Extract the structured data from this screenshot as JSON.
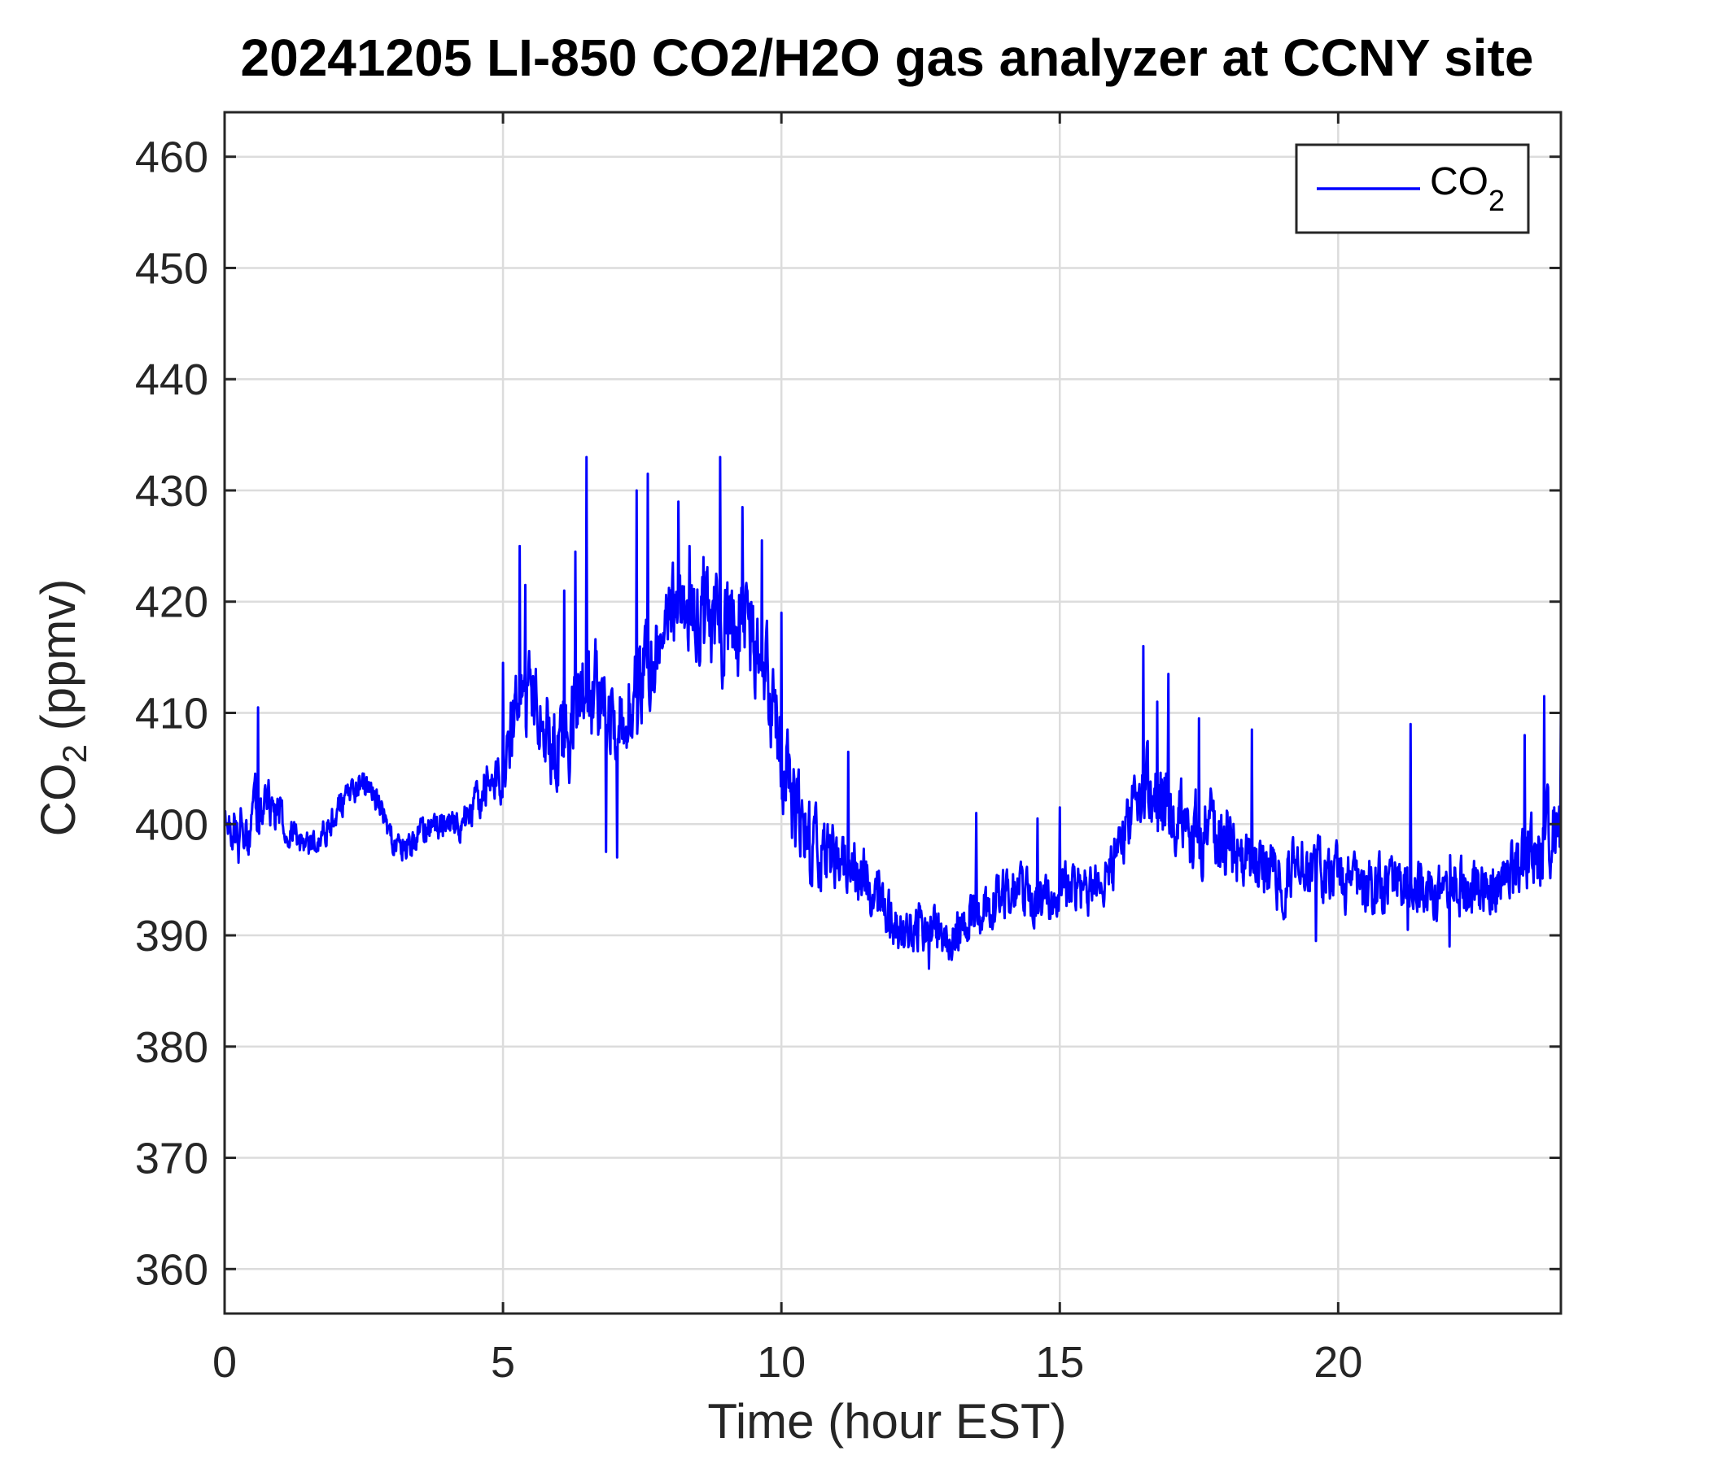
{
  "chart_data": {
    "type": "line",
    "title": "20241205 LI-850 CO2/H2O gas analyzer at CCNY site",
    "xlabel": "Time (hour EST)",
    "ylabel_main": "CO",
    "ylabel_sub": "2",
    "ylabel_tail": " (ppmv)",
    "xlim": [
      0,
      24
    ],
    "ylim": [
      356,
      464
    ],
    "xticks": [
      0,
      5,
      10,
      15,
      20
    ],
    "yticks": [
      360,
      370,
      380,
      390,
      400,
      410,
      420,
      430,
      440,
      450,
      460
    ],
    "grid": true,
    "legend_position": "top-right",
    "series": [
      {
        "name_main": "CO",
        "name_sub": "2",
        "color": "#0000ff",
        "x": [
          0,
          0.25,
          0.5,
          0.75,
          1,
          1.25,
          1.5,
          1.75,
          2,
          2.25,
          2.5,
          2.75,
          3,
          3.25,
          3.5,
          3.75,
          4,
          4.25,
          4.5,
          4.75,
          5,
          5.25,
          5.5,
          5.75,
          6,
          6.25,
          6.5,
          6.75,
          7,
          7.25,
          7.5,
          7.75,
          8,
          8.25,
          8.5,
          8.75,
          9,
          9.25,
          9.5,
          9.75,
          10,
          10.25,
          10.5,
          10.75,
          11,
          11.25,
          11.5,
          11.75,
          12,
          12.25,
          12.5,
          12.75,
          13,
          13.25,
          13.5,
          13.75,
          14,
          14.25,
          14.5,
          14.75,
          15,
          15.25,
          15.5,
          15.75,
          16,
          16.25,
          16.5,
          16.75,
          17,
          17.25,
          17.5,
          17.75,
          18,
          18.25,
          18.5,
          18.75,
          19,
          19.25,
          19.5,
          19.75,
          20,
          20.25,
          20.5,
          20.75,
          21,
          21.25,
          21.5,
          21.75,
          22,
          22.25,
          22.5,
          22.75,
          23,
          23.25,
          23.5,
          23.75,
          24
        ],
        "y": [
          400,
          399,
          401,
          402,
          401,
          399,
          398,
          399,
          401,
          403,
          404,
          402,
          399,
          398,
          399,
          400,
          400,
          400,
          402,
          404,
          405,
          411,
          412,
          409,
          406,
          410,
          412,
          411,
          410,
          410,
          413,
          415,
          419,
          420,
          419,
          418,
          417,
          418,
          416,
          413,
          407,
          401,
          399,
          397,
          397,
          396,
          395,
          393,
          391,
          390,
          391,
          390,
          390,
          391,
          392,
          393,
          394,
          394,
          393,
          393,
          394,
          394,
          394,
          395,
          397,
          400,
          403,
          402,
          401,
          400,
          399,
          400,
          399,
          397,
          397,
          396,
          395,
          396,
          396,
          396,
          395,
          395,
          394,
          394,
          395,
          395,
          394,
          394,
          395,
          394,
          394,
          395,
          395,
          396,
          397,
          399,
          400
        ],
        "noise_amplitude": [
          2,
          3,
          3,
          2.5,
          2,
          1.5,
          1.5,
          1.5,
          1.5,
          1.5,
          1.5,
          1.5,
          1.5,
          1.5,
          1.5,
          1.5,
          1.5,
          1.5,
          2,
          2,
          3,
          4,
          4,
          4,
          5,
          5,
          5.5,
          5,
          4.5,
          4.5,
          5,
          4.5,
          4,
          4,
          4.5,
          4.5,
          5,
          5,
          5,
          5,
          5,
          4.5,
          4,
          3.5,
          3,
          3,
          3,
          3,
          2.5,
          2.5,
          2.5,
          2.5,
          2.5,
          2.5,
          2.5,
          2.5,
          2.5,
          2.5,
          2.5,
          2.5,
          2.5,
          2.5,
          2.5,
          2.5,
          2.5,
          3,
          4,
          4,
          4,
          4,
          4,
          4,
          4,
          3,
          3,
          3,
          3,
          3,
          3,
          3,
          3,
          3,
          3,
          3,
          3,
          3,
          3,
          3,
          3,
          3,
          3,
          3,
          3,
          3.5,
          3.5,
          4,
          4
        ],
        "spikes": [
          [
            0.6,
            410.5
          ],
          [
            5.3,
            425
          ],
          [
            5.4,
            421.5
          ],
          [
            5.0,
            414.5
          ],
          [
            6.1,
            421
          ],
          [
            6.3,
            424.5
          ],
          [
            6.5,
            433
          ],
          [
            6.85,
            397.5
          ],
          [
            7.05,
            397
          ],
          [
            7.4,
            430
          ],
          [
            7.6,
            431.5
          ],
          [
            8.05,
            423.5
          ],
          [
            8.15,
            429
          ],
          [
            8.35,
            425
          ],
          [
            8.6,
            424
          ],
          [
            8.9,
            433
          ],
          [
            9.3,
            428.5
          ],
          [
            9.65,
            425.5
          ],
          [
            10.0,
            419
          ],
          [
            10.25,
            398
          ],
          [
            10.5,
            402
          ],
          [
            11.2,
            406.5
          ],
          [
            11.6,
            392
          ],
          [
            12.65,
            387
          ],
          [
            13.5,
            401
          ],
          [
            14.6,
            400.5
          ],
          [
            15.0,
            401.5
          ],
          [
            16.5,
            416
          ],
          [
            16.75,
            411
          ],
          [
            16.95,
            413.5
          ],
          [
            17.5,
            409.5
          ],
          [
            18.2,
            398
          ],
          [
            18.45,
            408.5
          ],
          [
            19.6,
            389.5
          ],
          [
            21.3,
            409
          ],
          [
            21.25,
            390.5
          ],
          [
            22.0,
            389
          ],
          [
            23.35,
            408
          ],
          [
            23.7,
            411.5
          ],
          [
            24.0,
            410.5
          ]
        ]
      }
    ]
  }
}
